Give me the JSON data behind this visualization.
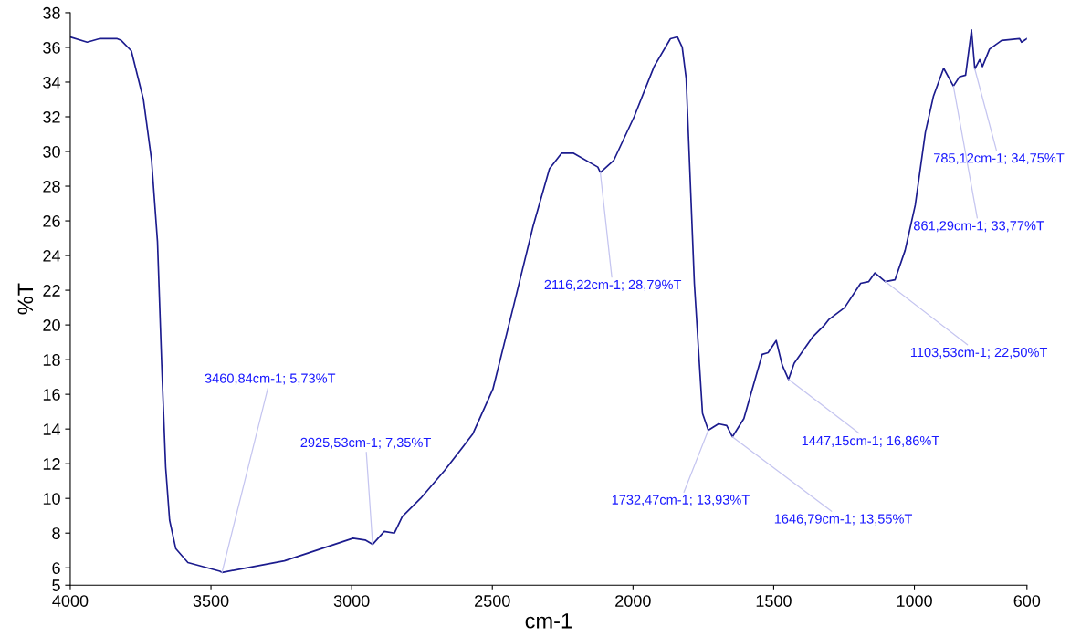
{
  "chart_data": {
    "type": "line",
    "xlabel": "cm-1",
    "ylabel": "%T",
    "xlim": [
      4000,
      600
    ],
    "xticks": [
      4000,
      3500,
      3000,
      2500,
      2000,
      1500,
      1000,
      600
    ],
    "ylim": [
      5,
      38
    ],
    "yticks": [
      5,
      6,
      8,
      10,
      12,
      14,
      16,
      18,
      20,
      22,
      24,
      26,
      28,
      30,
      32,
      34,
      36,
      38
    ],
    "grid": false,
    "legend": false,
    "marker": "none",
    "line_style": "solid",
    "series": [
      {
        "color": "#1c1c8e",
        "x": [
          4000,
          3940,
          3897,
          3833,
          3819,
          3783,
          3740,
          3711,
          3690,
          3675,
          3661,
          3647,
          3625,
          3582,
          3468,
          3460.84,
          3239,
          2995,
          2952,
          2925.53,
          2895,
          2884,
          2848,
          2820,
          2755,
          2670,
          2570,
          2498,
          2426,
          2355,
          2297,
          2254,
          2211,
          2125,
          2116.22,
          2068,
          1996,
          1925,
          1867,
          1842,
          1825,
          1811,
          1782,
          1753,
          1732.47,
          1696,
          1667,
          1646.79,
          1606,
          1541,
          1520,
          1491,
          1470,
          1447.15,
          1427,
          1362,
          1319,
          1305,
          1248,
          1191,
          1162,
          1140,
          1103.53,
          1069,
          1033,
          997,
          961,
          932,
          896,
          861.29,
          840,
          818,
          797,
          785.12,
          768,
          758,
          733,
          690,
          626,
          619,
          600
        ],
        "values": [
          36.6,
          36.3,
          36.5,
          36.5,
          36.4,
          35.8,
          33.0,
          29.5,
          24.8,
          17.7,
          11.8,
          8.75,
          7.1,
          6.3,
          5.8,
          5.73,
          6.4,
          7.7,
          7.6,
          7.35,
          7.9,
          8.1,
          8.0,
          8.95,
          10.0,
          11.6,
          13.7,
          16.3,
          21.0,
          25.7,
          29.0,
          29.9,
          29.9,
          29.1,
          28.79,
          29.5,
          32.0,
          34.9,
          36.5,
          36.6,
          36.0,
          34.2,
          22.4,
          14.9,
          13.93,
          14.3,
          14.2,
          13.55,
          14.6,
          18.3,
          18.4,
          19.1,
          17.7,
          16.86,
          17.8,
          19.3,
          20.0,
          20.3,
          21.0,
          22.4,
          22.5,
          23.0,
          22.5,
          22.6,
          24.3,
          26.9,
          31.1,
          33.2,
          34.8,
          33.77,
          34.3,
          34.4,
          37.0,
          34.75,
          35.3,
          34.9,
          35.9,
          36.4,
          36.5,
          36.3,
          36.5
        ]
      }
    ],
    "annotations": [
      {
        "text": "3460,84cm-1; 5,73%T",
        "x": 3460.84,
        "y": 5.73
      },
      {
        "text": "2925,53cm-1; 7,35%T",
        "x": 2925.53,
        "y": 7.35
      },
      {
        "text": "2116,22cm-1; 28,79%T",
        "x": 2116.22,
        "y": 28.79
      },
      {
        "text": "1732,47cm-1; 13,93%T",
        "x": 1732.47,
        "y": 13.93
      },
      {
        "text": "1646,79cm-1; 13,55%T",
        "x": 1646.79,
        "y": 13.55
      },
      {
        "text": "1447,15cm-1; 16,86%T",
        "x": 1447.15,
        "y": 16.86
      },
      {
        "text": "1103,53cm-1; 22,50%T",
        "x": 1103.53,
        "y": 22.5
      },
      {
        "text": "861,29cm-1; 33,77%T",
        "x": 861.29,
        "y": 33.77
      },
      {
        "text": "785,12cm-1; 34,75%T",
        "x": 785.12,
        "y": 34.75
      }
    ]
  }
}
